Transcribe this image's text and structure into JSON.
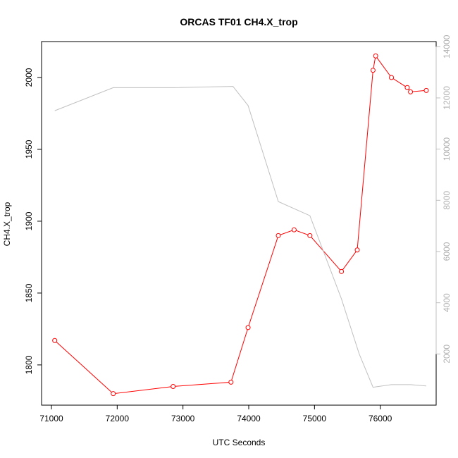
{
  "chart_data": {
    "type": "line",
    "title": "ORCAS TF01 CH4.X_trop",
    "xlabel": "UTC Seconds",
    "ylabel": "CH4.X_trop",
    "xlim": [
      70850,
      76850
    ],
    "ylim": [
      1772,
      2025
    ],
    "y2lim": [
      0,
      14200
    ],
    "x_ticks": [
      71000,
      72000,
      73000,
      74000,
      75000,
      76000
    ],
    "y_ticks": [
      1800,
      1850,
      1900,
      1950,
      2000
    ],
    "y2_ticks": [
      2000,
      4000,
      6000,
      8000,
      10000,
      12000,
      14000
    ],
    "grid": false,
    "colors": {
      "primary": "#ff0000",
      "secondary": "#c0c0c0",
      "axis": "#000000"
    },
    "series": [
      {
        "axis": "left",
        "style": "line+points",
        "x": [
          71050,
          71940,
          72850,
          73730,
          73990,
          74450,
          74690,
          74930,
          75410,
          75650,
          75890,
          75930,
          76170,
          76410,
          76460,
          76700
        ],
        "y": [
          1817,
          1780,
          1785,
          1788,
          1826,
          1890,
          1894,
          1890,
          1865,
          1880,
          2005,
          2015,
          2000,
          1993,
          1990,
          1991
        ]
      },
      {
        "axis": "right",
        "style": "line",
        "x": [
          71050,
          71940,
          72850,
          73760,
          73990,
          74450,
          74930,
          75410,
          75680,
          75890,
          76170,
          76460,
          76700
        ],
        "y": [
          11500,
          12400,
          12400,
          12450,
          11700,
          7950,
          7400,
          4150,
          2000,
          700,
          800,
          800,
          750
        ]
      }
    ]
  }
}
